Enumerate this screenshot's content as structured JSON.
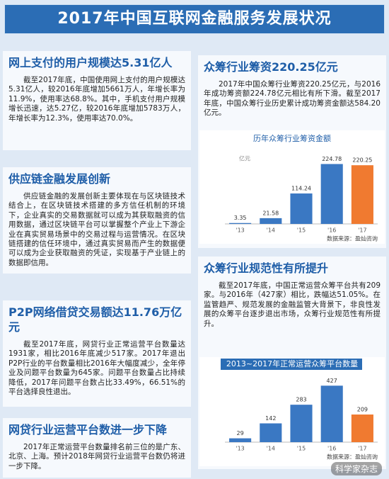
{
  "header": {
    "title": "2017年中国互联网金融服务发展状况"
  },
  "left_sections": [
    {
      "heading": "网上支付的用户规模达5.31亿人",
      "text": "截至2017年底，中国使用网上支付的用户规模达5.31亿人，较2016年底增加5661万人，年增长率为11.9%，使用率达68.8%。其中，手机支付用户规模增长迅速，达5.27亿，较2016年底增加5783万人，年增长率为12.3%，使用率达70.0%。"
    },
    {
      "heading": "供应链金融发展创新",
      "text": "供应链金融的发展创新主要体现在与区块链技术结合上，在区块链技术搭建的多方信任机制的环境下，企业真实的交易数据就可以成为其获取融资的信用数据，通过区块链平台可以掌握整个产业上下游企业在真实贸易场景中的交易过程与运营情况。在区块链搭建的信任环境中，通过真实贸易而产生的数据便可以成为企业获取融资的凭证，实现基于产业链上的数据即信用。"
    },
    {
      "heading": "P2P网络借贷交易额达11.76万亿元",
      "text": "截至2017年底，网贷行业正常运营平台数量达1931家，相比2016年底减少517家。2017年退出P2P行业的平台数量相比2016年大幅度减少，全年停业及问题平台数量为645家。问题平台数量占比持续降低，2017年问题平台数占比33.49%，66.51%的平台选择良性退出。"
    },
    {
      "heading": "网贷行业运营平台数进一步下降",
      "text": "2017年正常运营平台数量排名前三位的是广东、北京、上海。预计2018年网贷行业运营平台数仍将进一步下降。"
    }
  ],
  "right_sections": [
    {
      "heading": "众筹行业筹资220.25亿元",
      "text": "2017年中国众筹行业筹资220.25亿元，与2016年成功筹资额224.78亿元相比有所下滑。截至2017年底，中国众筹行业历史累计成功筹资金额达584.20亿元。"
    },
    {
      "heading": "众筹行业规范性有所提升",
      "text": "截至2017年底，中国正常运营众筹平台共有209家。与2016年（427家）相比，跌幅达51.05%。在监管趋严、规范发展的金融监管大背景下，非良性发展的众筹平台逐步退出市场，众筹行业规范性有所提升。"
    }
  ],
  "chart_data": [
    {
      "type": "bar",
      "title": "历年众筹行业筹资金额",
      "y_label": "亿元",
      "categories": [
        "'13",
        "'14",
        "'15",
        "'16",
        "'17"
      ],
      "values": [
        3.35,
        21.58,
        114.24,
        224.78,
        220.25
      ],
      "colors": [
        "#3a78c3",
        "#3a78c3",
        "#3a78c3",
        "#3a78c3",
        "#f07a30"
      ],
      "ylim": [
        0,
        250
      ],
      "source": "数据来源：盈灿咨询"
    },
    {
      "type": "bar",
      "title": "2013~2017年正常运营众筹平台数量",
      "categories": [
        "'13",
        "'14",
        "'15",
        "'16",
        "'17"
      ],
      "values": [
        29,
        142,
        283,
        427,
        209
      ],
      "colors": [
        "#3a78c3",
        "#3a78c3",
        "#3a78c3",
        "#3a78c3",
        "#f07a30"
      ],
      "ylim": [
        0,
        450
      ],
      "source": "数据来源：盈灿咨询"
    }
  ],
  "watermark": "科学家杂志"
}
